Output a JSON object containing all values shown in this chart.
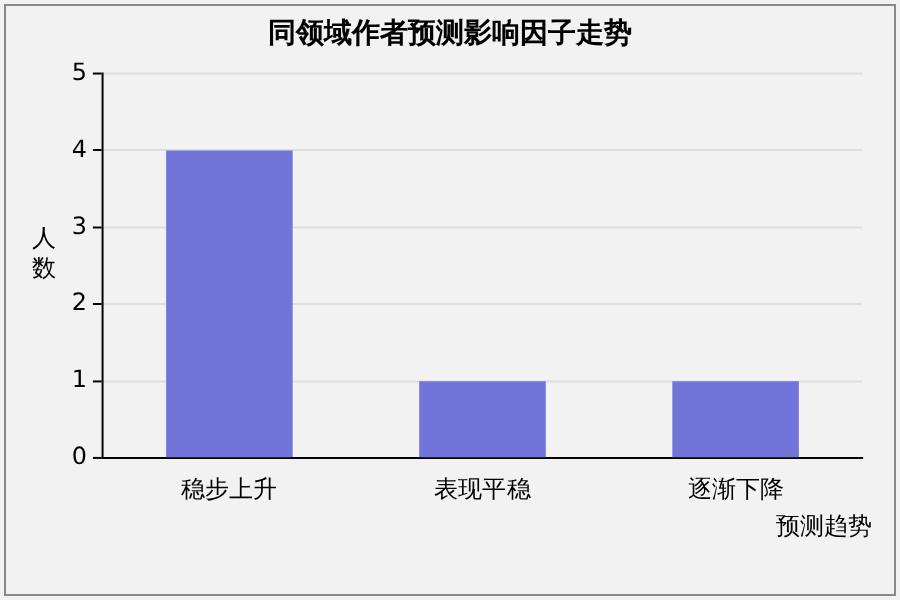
{
  "chart_data": {
    "type": "bar",
    "title": "同领域作者预测影响因子走势",
    "xlabel": "预测趋势",
    "ylabel": "人数",
    "categories": [
      "稳步上升",
      "表现平稳",
      "逐渐下降"
    ],
    "values": [
      4,
      1,
      1
    ],
    "color": "#7174d8",
    "ylim": [
      0,
      5
    ],
    "yticks": [
      0,
      1,
      2,
      3,
      4,
      5
    ],
    "grid": "y"
  }
}
